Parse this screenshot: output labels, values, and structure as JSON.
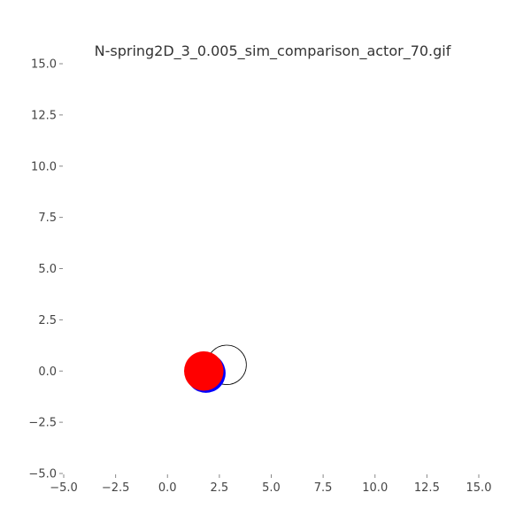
{
  "chart_data": {
    "type": "scatter",
    "title": "N-spring2D_3_0.005_sim_comparison_actor_70.gif",
    "xlabel": "",
    "ylabel": "",
    "xlim": [
      -5.0,
      15.0
    ],
    "ylim": [
      -5.0,
      15.0
    ],
    "xticks": [
      "−5.0",
      "−2.5",
      "0.0",
      "2.5",
      "5.0",
      "7.5",
      "10.0",
      "12.5",
      "15.0"
    ],
    "yticks": [
      "15.0",
      "12.5",
      "10.0",
      "7.5",
      "5.0",
      "2.5",
      "0.0",
      "−2.5",
      "−5.0"
    ],
    "xtick_values": [
      -5.0,
      -2.5,
      0.0,
      2.5,
      5.0,
      7.5,
      10.0,
      12.5,
      15.0
    ],
    "ytick_values": [
      15.0,
      12.5,
      10.0,
      7.5,
      5.0,
      2.5,
      0.0,
      -2.5,
      -5.0
    ],
    "grid": false,
    "objects": [
      {
        "name": "outline-circle",
        "x": 2.85,
        "y": 0.3,
        "r": 0.95,
        "fill": "none",
        "stroke": "#000000"
      },
      {
        "name": "blue-circle",
        "x": 1.85,
        "y": -0.1,
        "r": 0.95,
        "fill": "#0000ff",
        "stroke": "none"
      },
      {
        "name": "red-circle",
        "x": 1.75,
        "y": 0.0,
        "r": 0.95,
        "fill": "#ff0000",
        "stroke": "none"
      }
    ]
  }
}
